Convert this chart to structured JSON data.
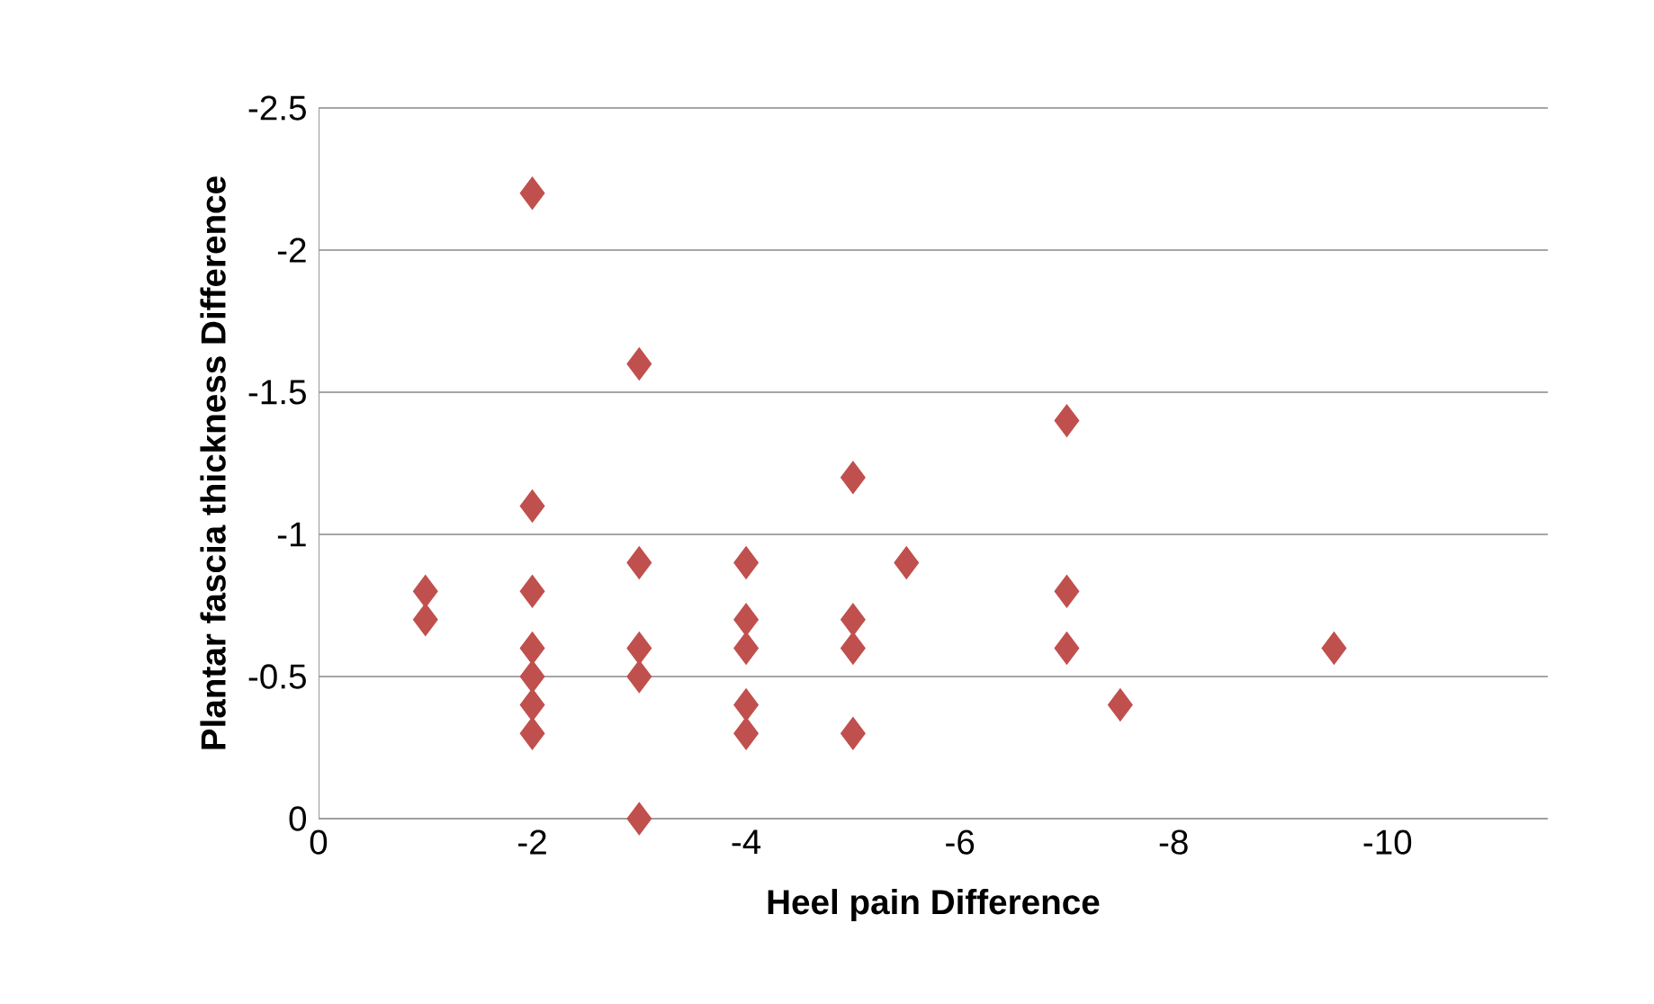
{
  "chart_data": {
    "type": "scatter",
    "xlabel": "Heel pain Difference",
    "ylabel": "Plantar fascia thickness Difference",
    "x": [
      -1,
      -1,
      -2,
      -2,
      -2,
      -2,
      -2,
      -2,
      -2,
      -3,
      -3,
      -3,
      -3,
      -3,
      -4,
      -4,
      -4,
      -4,
      -4,
      -5,
      -5,
      -5,
      -5,
      -5.5,
      -7,
      -7,
      -7,
      -7.5,
      -9.5
    ],
    "values": [
      -0.8,
      -0.7,
      -2.2,
      -1.1,
      -0.8,
      -0.6,
      -0.5,
      -0.4,
      -0.3,
      -1.6,
      -0.9,
      -0.6,
      -0.5,
      0,
      -0.9,
      -0.7,
      -0.6,
      -0.4,
      -0.3,
      -1.2,
      -0.7,
      -0.6,
      -0.3,
      -0.9,
      -1.4,
      -0.8,
      -0.6,
      -0.4,
      -0.6
    ],
    "color": "#c0504d",
    "marker": "diamond",
    "xlim": [
      0,
      -11.5
    ],
    "xticks": [
      0,
      -2,
      -4,
      -6,
      -8,
      -10
    ],
    "ylim": [
      0,
      -2.5
    ],
    "yticks": [
      0,
      -0.5,
      -1,
      -1.5,
      -2,
      -2.5
    ],
    "grid": "y"
  }
}
